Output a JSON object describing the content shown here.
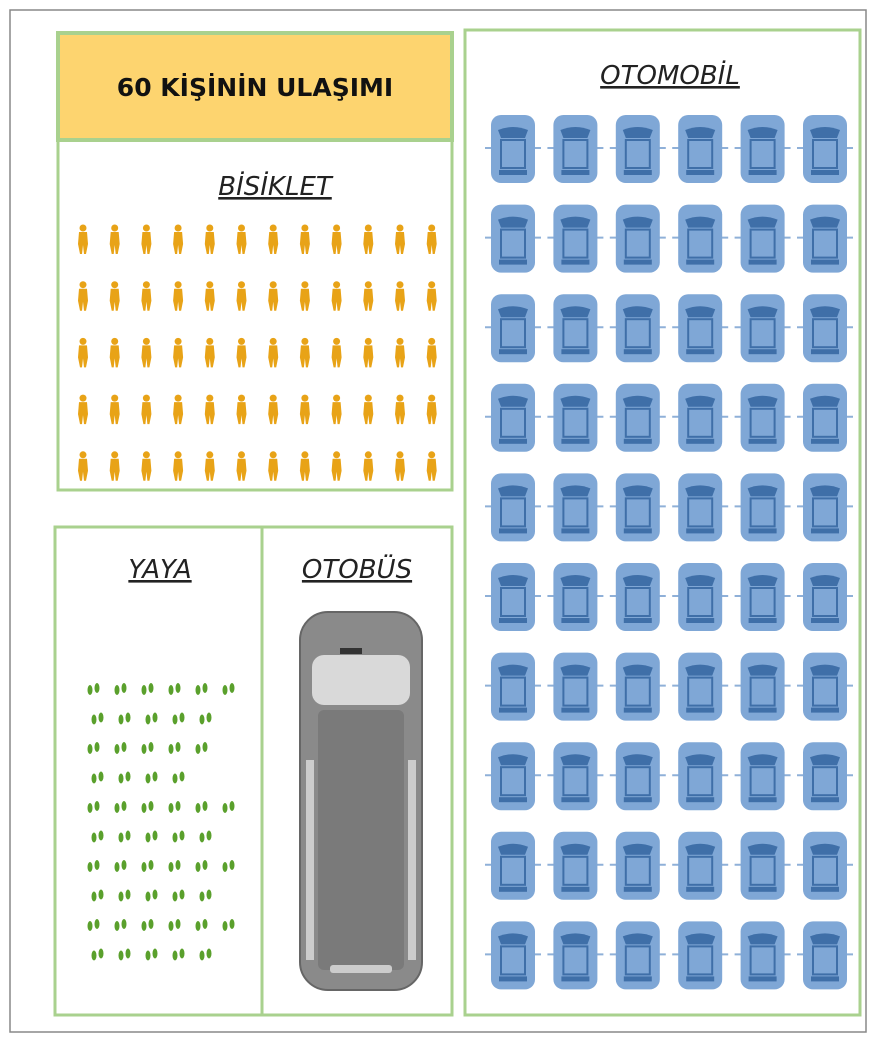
{
  "header": {
    "title": "60 KİŞİNİN ULAŞIMI"
  },
  "sections": {
    "bicycle": "BİSİKLET",
    "car": "OTOMOBİL",
    "walk": "YAYA",
    "bus": "OTOBÜS"
  }
}
